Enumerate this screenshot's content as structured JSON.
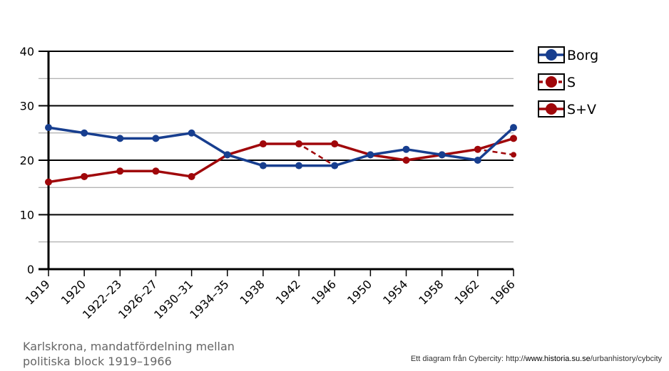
{
  "chart_data": {
    "type": "line",
    "categories": [
      "1919",
      "1920",
      "1922–23",
      "1926–27",
      "1930–31",
      "1934–35",
      "1938",
      "1942",
      "1946",
      "1950",
      "1954",
      "1958",
      "1962",
      "1966"
    ],
    "ylim": [
      0,
      40
    ],
    "yticks": [
      0,
      10,
      20,
      30,
      40
    ],
    "grid": true,
    "legend_position": "right",
    "series": [
      {
        "name": "Borg",
        "color": "#173e8f",
        "style": "solid",
        "values": [
          26,
          25,
          24,
          24,
          25,
          21,
          19,
          19,
          19,
          21,
          22,
          21,
          20,
          26
        ]
      },
      {
        "name": "S",
        "color": "#a0070a",
        "style": "dashed",
        "values": [
          16,
          17,
          18,
          18,
          17,
          21,
          23,
          23,
          19,
          21,
          20,
          21,
          22,
          21
        ]
      },
      {
        "name": "S+V",
        "color": "#a0070a",
        "style": "solid",
        "values": [
          16,
          17,
          18,
          18,
          17,
          21,
          23,
          23,
          23,
          21,
          20,
          21,
          22,
          24
        ]
      }
    ]
  },
  "caption": {
    "line1": "Karlskrona, mandatfördelning mellan",
    "line2": "politiska block 1919–1966"
  },
  "credit": {
    "prefix": "Ett diagram från Cybercity: http://",
    "host": "www.historia.su.se",
    "path": "/urbanhistory/cybcity"
  }
}
